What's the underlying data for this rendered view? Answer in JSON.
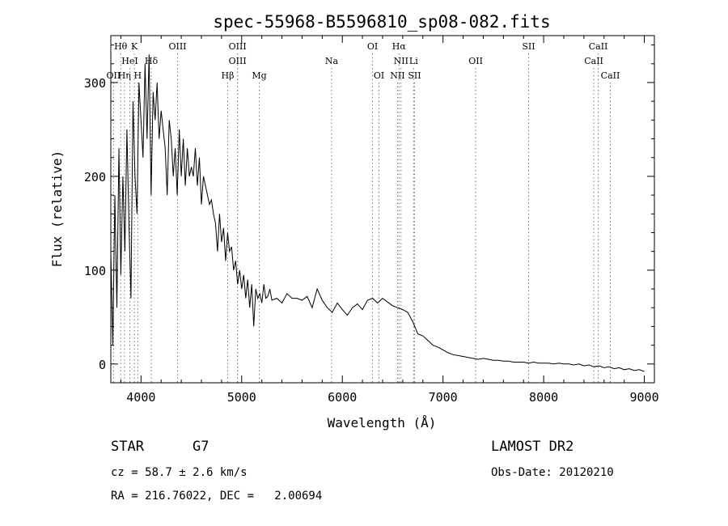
{
  "chart_data": {
    "type": "line",
    "title": "spec-55968-B5596810_sp08-082.fits",
    "xlabel": "Wavelength (Å)",
    "ylabel": "Flux (relative)",
    "xlim": [
      3700,
      9100
    ],
    "ylim": [
      -20,
      350
    ],
    "xticks": [
      4000,
      5000,
      6000,
      7000,
      8000,
      9000
    ],
    "yticks": [
      0,
      100,
      200,
      300
    ],
    "grid": false,
    "series": [
      {
        "x": [
          3700,
          3720,
          3740,
          3760,
          3780,
          3800,
          3820,
          3840,
          3860,
          3880,
          3900,
          3920,
          3940,
          3960,
          3980,
          4000,
          4020,
          4040,
          4060,
          4080,
          4100,
          4120,
          4140,
          4160,
          4180,
          4200,
          4220,
          4240,
          4260,
          4280,
          4300,
          4320,
          4340,
          4360,
          4380,
          4400,
          4420,
          4440,
          4460,
          4480,
          4500,
          4520,
          4540,
          4560,
          4580,
          4600,
          4620,
          4640,
          4660,
          4680,
          4700,
          4720,
          4740,
          4760,
          4780,
          4800,
          4820,
          4840,
          4860,
          4880,
          4900,
          4920,
          4940,
          4960,
          4980,
          5000,
          5020,
          5040,
          5060,
          5080,
          5100,
          5120,
          5140,
          5160,
          5180,
          5200,
          5220,
          5240,
          5260,
          5280,
          5300,
          5350,
          5400,
          5450,
          5500,
          5550,
          5600,
          5650,
          5700,
          5750,
          5800,
          5850,
          5900,
          5950,
          6000,
          6050,
          6100,
          6150,
          6200,
          6250,
          6300,
          6350,
          6400,
          6450,
          6500,
          6550,
          6600,
          6650,
          6700,
          6750,
          6800,
          6850,
          6900,
          6950,
          7000,
          7050,
          7100,
          7150,
          7200,
          7250,
          7300,
          7350,
          7400,
          7450,
          7500,
          7550,
          7600,
          7650,
          7700,
          7750,
          7800,
          7850,
          7900,
          7950,
          8000,
          8050,
          8100,
          8150,
          8200,
          8250,
          8300,
          8350,
          8400,
          8450,
          8500,
          8550,
          8600,
          8650,
          8700,
          8750,
          8800,
          8850,
          8900,
          8950,
          9000
        ],
        "values": [
          120,
          20,
          180,
          60,
          230,
          95,
          200,
          120,
          250,
          150,
          70,
          280,
          200,
          160,
          300,
          260,
          220,
          320,
          240,
          330,
          180,
          290,
          260,
          300,
          240,
          270,
          250,
          230,
          180,
          260,
          240,
          200,
          230,
          180,
          250,
          200,
          240,
          190,
          230,
          200,
          210,
          200,
          230,
          190,
          220,
          170,
          200,
          190,
          180,
          170,
          175,
          160,
          150,
          120,
          160,
          130,
          145,
          110,
          140,
          120,
          125,
          100,
          110,
          85,
          100,
          80,
          95,
          70,
          90,
          60,
          85,
          40,
          80,
          70,
          75,
          65,
          85,
          70,
          72,
          80,
          68,
          70,
          65,
          75,
          70,
          70,
          68,
          72,
          60,
          80,
          68,
          60,
          55,
          65,
          58,
          52,
          60,
          64,
          58,
          68,
          70,
          65,
          70,
          66,
          62,
          60,
          58,
          55,
          45,
          32,
          30,
          25,
          20,
          18,
          15,
          12,
          10,
          9,
          8,
          7,
          6,
          5,
          6,
          5,
          4,
          4,
          3,
          3,
          2,
          2,
          2,
          1,
          2,
          1,
          1,
          1,
          0,
          1,
          0,
          0,
          -1,
          0,
          -2,
          -1,
          -3,
          -2,
          -4,
          -3,
          -5,
          -4,
          -6,
          -5,
          -7,
          -6,
          -8
        ]
      }
    ]
  },
  "line_marks": [
    {
      "label": "Hθ",
      "wl": 3798,
      "row": 0
    },
    {
      "label": "K",
      "wl": 3934,
      "row": 0
    },
    {
      "label": "OIII",
      "wl": 4363,
      "row": 0
    },
    {
      "label": "OIII",
      "wl": 4959,
      "row": 0
    },
    {
      "label": "OI",
      "wl": 6300,
      "row": 0
    },
    {
      "label": "Hα",
      "wl": 6563,
      "row": 0
    },
    {
      "label": "SII",
      "wl": 7850,
      "row": 0
    },
    {
      "label": "CaII",
      "wl": 8542,
      "row": 0
    },
    {
      "label": "HeI",
      "wl": 3889,
      "row": 1
    },
    {
      "label": "Hδ",
      "wl": 4102,
      "row": 1
    },
    {
      "label": "OIII",
      "wl": 4959,
      "row": 1
    },
    {
      "label": "Na",
      "wl": 5893,
      "row": 1
    },
    {
      "label": "NII",
      "wl": 6583,
      "row": 1
    },
    {
      "label": "Li",
      "wl": 6708,
      "row": 1
    },
    {
      "label": "OII",
      "wl": 7325,
      "row": 1
    },
    {
      "label": "CaII",
      "wl": 8498,
      "row": 1
    },
    {
      "label": "OII",
      "wl": 3727,
      "row": 2
    },
    {
      "label": "Hη",
      "wl": 3835,
      "row": 2
    },
    {
      "label": "H",
      "wl": 3968,
      "row": 2
    },
    {
      "label": "Hβ",
      "wl": 4861,
      "row": 2
    },
    {
      "label": "Mg",
      "wl": 5175,
      "row": 2
    },
    {
      "label": "OI",
      "wl": 6364,
      "row": 2
    },
    {
      "label": "NII",
      "wl": 6548,
      "row": 2
    },
    {
      "label": "SII",
      "wl": 6717,
      "row": 2
    },
    {
      "label": "CaII",
      "wl": 8662,
      "row": 2
    }
  ],
  "info": {
    "object_class": "STAR",
    "subclass": "G7",
    "survey": "LAMOST DR2",
    "cz": "cz = 58.7 ± 2.6 km/s",
    "obs_date": "Obs-Date: 20120210",
    "coords": "RA = 216.76022, DEC =   2.00694"
  }
}
